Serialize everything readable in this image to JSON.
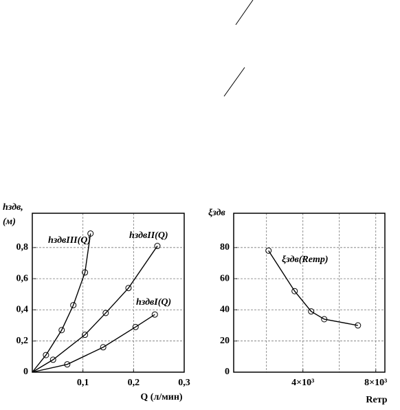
{
  "chart_data": [
    {
      "type": "line",
      "ylabel": [
        "hздв,",
        "(м)"
      ],
      "xlabel": "Q (л/мин)",
      "xlim": [
        0,
        0.3
      ],
      "ylim": [
        0,
        1.02
      ],
      "xticks": [
        {
          "value": 0.1,
          "label": "0,1"
        },
        {
          "value": 0.2,
          "label": "0,2"
        },
        {
          "value": 0.3,
          "label": "0,3"
        }
      ],
      "yticks": [
        0,
        {
          "value": 0.2,
          "label": "0,2"
        },
        {
          "value": 0.4,
          "label": "0,4"
        },
        {
          "value": 0.6,
          "label": "0,6"
        },
        {
          "value": 0.8,
          "label": "0,8"
        }
      ],
      "grid": true,
      "series": [
        {
          "name": "hздвIII(Q)",
          "color": "#000",
          "x": [
            0,
            0.027,
            0.058,
            0.081,
            0.104,
            0.115
          ],
          "values": [
            0,
            0.11,
            0.27,
            0.43,
            0.64,
            0.89
          ]
        },
        {
          "name": "hздвII(Q)",
          "color": "#000",
          "x": [
            0,
            0.041,
            0.104,
            0.145,
            0.19,
            0.247
          ],
          "values": [
            0,
            0.08,
            0.24,
            0.38,
            0.54,
            0.81
          ]
        },
        {
          "name": "hздвI(Q)",
          "color": "#000",
          "x": [
            0,
            0.069,
            0.14,
            0.204,
            0.242
          ],
          "values": [
            0,
            0.05,
            0.16,
            0.29,
            0.37
          ]
        }
      ]
    },
    {
      "type": "line",
      "ylabel": [
        "ξздв"
      ],
      "xlabel": "Reтр",
      "xlim": [
        200,
        8500
      ],
      "ylim": [
        0,
        102
      ],
      "xticks": [
        {
          "value": 4000,
          "label": "4×10³"
        },
        {
          "value": 8000,
          "label": "8×10³"
        }
      ],
      "xgrid": [
        2000,
        6000
      ],
      "yticks": [
        0,
        20,
        40,
        60,
        80
      ],
      "grid": true,
      "series": [
        {
          "name": "ξздв(Reтр)",
          "color": "#000",
          "x": [
            2113,
            3547,
            4453,
            5170,
            7020
          ],
          "values": [
            78,
            52,
            39,
            34,
            30
          ]
        }
      ]
    }
  ]
}
